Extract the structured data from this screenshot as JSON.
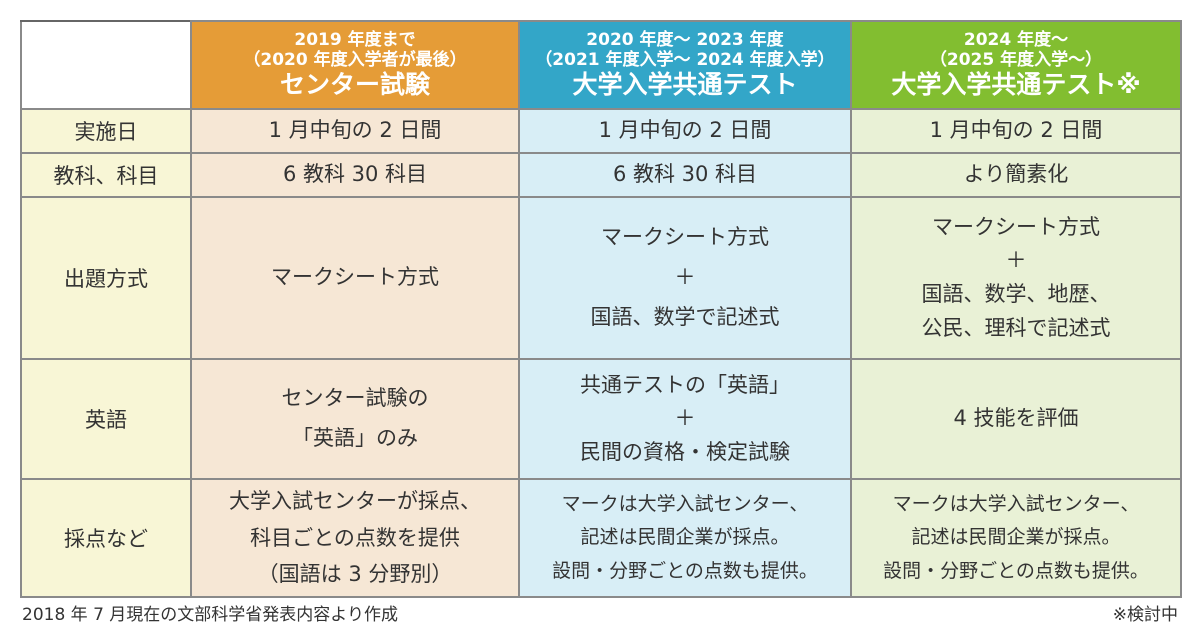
{
  "header": {
    "columns": [
      {
        "sub": [
          "2019 年度まで",
          "（2020 年度入学者が最後）"
        ],
        "title": "センター試験",
        "color": "#e59c37"
      },
      {
        "sub": [
          "2020 年度～ 2023 年度",
          "（2021 年度入学～ 2024 年度入学）"
        ],
        "title": "大学入学共通テスト",
        "color": "#33a6c8"
      },
      {
        "sub": [
          "2024 年度～",
          "（2025 年度入学～）"
        ],
        "title": "大学入学共通テスト※",
        "color": "#82be30"
      }
    ]
  },
  "rows": [
    {
      "label": "実施日",
      "cells": [
        [
          "1 月中旬の 2 日間"
        ],
        [
          "1 月中旬の 2 日間"
        ],
        [
          "1 月中旬の 2 日間"
        ]
      ]
    },
    {
      "label": "教科、科目",
      "cells": [
        [
          "6 教科 30 科目"
        ],
        [
          "6 教科 30 科目"
        ],
        [
          "より簡素化"
        ]
      ]
    },
    {
      "label": "出題方式",
      "cells": [
        [
          "マークシート方式"
        ],
        [
          "マークシート方式",
          "＋",
          "国語、数学で記述式"
        ],
        [
          "マークシート方式",
          "＋",
          "国語、数学、地歴、",
          "公民、理科で記述式"
        ]
      ]
    },
    {
      "label": "英語",
      "cells": [
        [
          "センター試験の",
          "「英語」のみ"
        ],
        [
          "共通テストの「英語」",
          "＋",
          "民間の資格・検定試験"
        ],
        [
          "4 技能を評価"
        ]
      ]
    },
    {
      "label": "採点など",
      "cells": [
        [
          "大学入試センターが採点、",
          "科目ごとの点数を提供",
          "（国語は 3 分野別）"
        ],
        [
          "マークは大学入試センター、",
          "記述は民間企業が採点。",
          "設問・分野ごとの点数も提供。"
        ],
        [
          "マークは大学入試センター、",
          "記述は民間企業が採点。",
          "設問・分野ごとの点数も提供。"
        ]
      ]
    }
  ],
  "footer": {
    "source": "2018 年 7 月現在の文部科学省発表内容より作成",
    "note": "※検討中"
  }
}
